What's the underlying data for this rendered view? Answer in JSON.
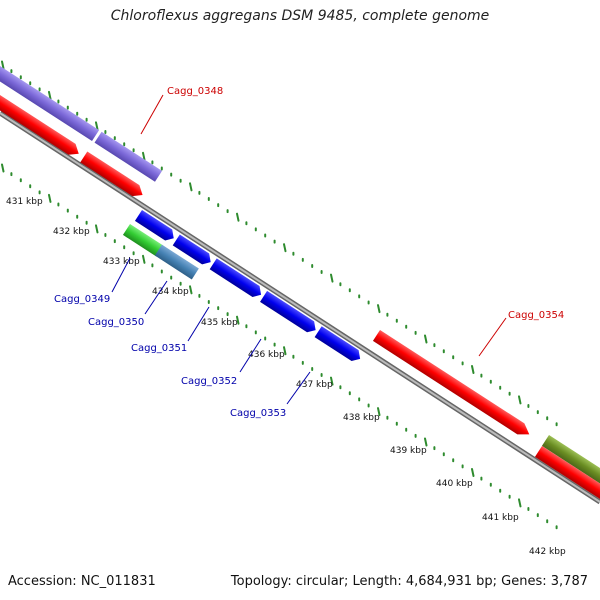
{
  "title": "Chloroflexus aggregans DSM 9485, complete genome",
  "footer": {
    "accession": "Accession: NC_011831",
    "summary": "Topology: circular; Length: 4,684,931 bp; Genes: 3,787"
  },
  "colors": {
    "backbone": "#888888",
    "tick": "#2e8b2e",
    "label_red": "#cc0000",
    "label_blue": "#0000aa",
    "gene_red": "#ff0000",
    "gene_blue": "#0000ee",
    "gene_purple": "#7b68d8",
    "gene_green": "#33cc33",
    "gene_steel": "#4682b4",
    "gene_olive": "#6b8e23"
  },
  "kbp_labels": [
    "431 kbp",
    "432 kbp",
    "433 kbp",
    "434 kbp",
    "435 kbp",
    "436 kbp",
    "437 kbp",
    "438 kbp",
    "439 kbp",
    "440 kbp",
    "441 kbp",
    "442 kbp"
  ],
  "gene_labels": {
    "cagg_0348": "Cagg_0348",
    "cagg_0349": "Cagg_0349",
    "cagg_0350": "Cagg_0350",
    "cagg_0351": "Cagg_0351",
    "cagg_0352": "Cagg_0352",
    "cagg_0353": "Cagg_0353",
    "cagg_0354": "Cagg_0354"
  }
}
